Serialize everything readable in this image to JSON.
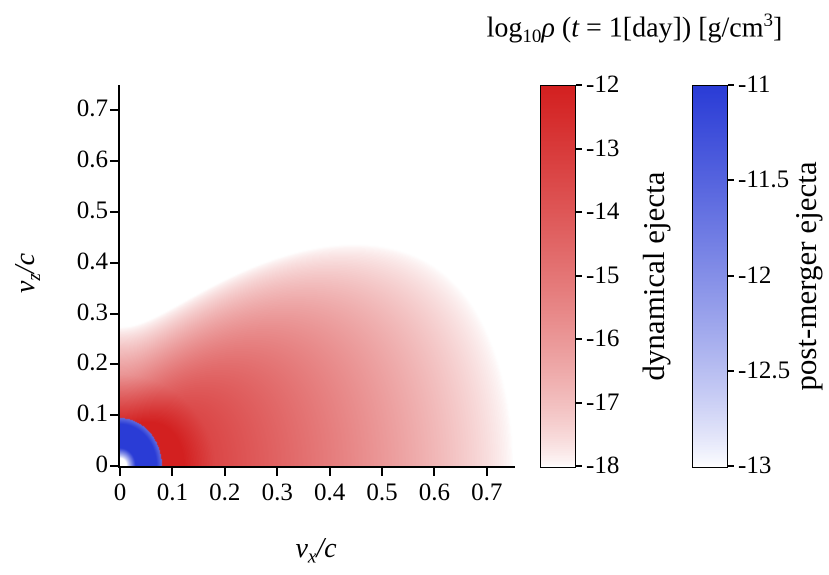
{
  "figure": {
    "background": "#ffffff",
    "title_parts": [
      {
        "text": "log",
        "style": "normal"
      },
      {
        "text": "10",
        "style": "sub"
      },
      {
        "text": "ρ",
        "style": "italic"
      },
      {
        "text": " (",
        "style": "normal"
      },
      {
        "text": "t",
        "style": "italic"
      },
      {
        "text": " = 1[day]) [g/cm",
        "style": "normal"
      },
      {
        "text": "3",
        "style": "sup"
      },
      {
        "text": "]",
        "style": "normal"
      }
    ]
  },
  "axes": {
    "xlabel_parts": [
      {
        "text": "v",
        "style": "italic"
      },
      {
        "text": "x",
        "style": "sub-italic"
      },
      {
        "text": "/c",
        "style": "italic"
      }
    ],
    "ylabel_parts": [
      {
        "text": "v",
        "style": "italic"
      },
      {
        "text": "z",
        "style": "sub-italic"
      },
      {
        "text": "/c",
        "style": "italic"
      }
    ]
  },
  "chart_data": {
    "type": "heatmap",
    "title": "log10 rho (t = 1[day]) [g/cm^3]",
    "xlabel": "v_x/c",
    "ylabel": "v_z/c",
    "xlim": [
      0,
      0.75
    ],
    "ylim": [
      0,
      0.75
    ],
    "xticks": [
      0,
      0.1,
      0.2,
      0.3,
      0.4,
      0.5,
      0.6,
      0.7
    ],
    "yticks": [
      0,
      0.1,
      0.2,
      0.3,
      0.4,
      0.5,
      0.6,
      0.7
    ],
    "grid": false,
    "series": [
      {
        "name": "dynamical ejecta",
        "color": "#d32020",
        "colormap": [
          "#ffffff",
          "#d32020"
        ],
        "range": [
          -18,
          -12
        ],
        "ticks": [
          -12,
          -13,
          -14,
          -15,
          -16,
          -17,
          -18
        ],
        "gamma": 0.7,
        "model": {
          "description": "log10 rho = -12 - v*(radial_slope + polar_slope*sin(theta)^polar_power) + core_boost*max(0,1-v/core_radius); fan of red ejecta from origin, widest along vx axis out to ~0.7c, reaching ~0.45c at 45 deg, ~0.26c along vz axis",
          "radial_slope": 8,
          "polar_slope": 14,
          "polar_power": 6,
          "core_boost": 3,
          "core_radius": 0.18
        }
      },
      {
        "name": "post-merger ejecta",
        "color": "#2a3cd6",
        "colormap": [
          "#ffffff",
          "#2a3cd6"
        ],
        "range": [
          -13,
          -11
        ],
        "ticks": [
          -11,
          -11.5,
          -12,
          -12.5,
          -13
        ],
        "gamma": 0.8,
        "model": {
          "description": "saturated blue shell near origin between v~0.03c and ~0.07c, white at the very corner, sharp outer edge at v~0.08c against the red field",
          "shell_inner": 0.03,
          "shell_outer": 0.07,
          "inner_falloff": 120,
          "outer_falloff": 60,
          "domain_radius": 0.08,
          "z_scale": 0.85
        }
      }
    ]
  }
}
